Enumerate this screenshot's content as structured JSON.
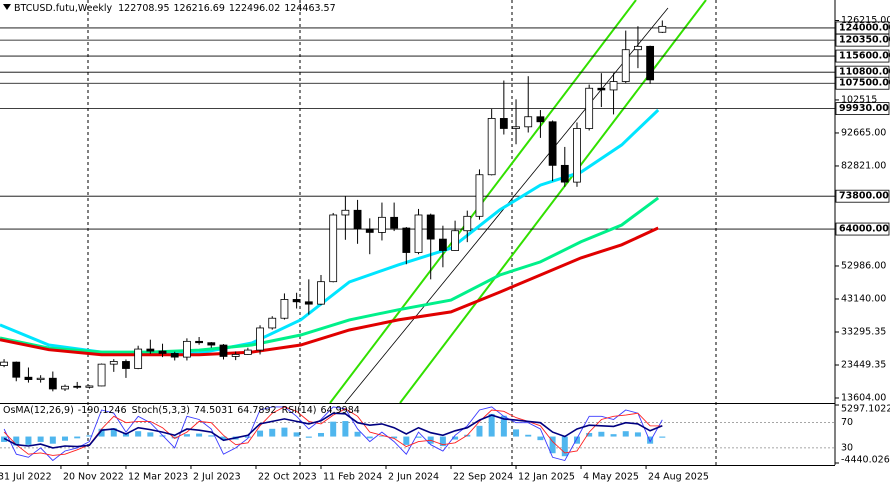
{
  "chart_data": [
    {
      "type": "candlestick",
      "title": "BTCUSD.futu,Weekly",
      "xlim": [
        1,
        206.5
      ],
      "ylim": [
        12112,
        132327
      ],
      "x": [
        2,
        5,
        8,
        11,
        14,
        17,
        20,
        23,
        26,
        29,
        32,
        35,
        38,
        41,
        44,
        47,
        50,
        53,
        56,
        59,
        62,
        65,
        68,
        71,
        74,
        77,
        80,
        83,
        86,
        89,
        92,
        95,
        98,
        101,
        104,
        107,
        110,
        113,
        116,
        119,
        122,
        125,
        128,
        131,
        134,
        137,
        140,
        143,
        146,
        149,
        152,
        155,
        158,
        161,
        164
      ],
      "open": [
        23300,
        24300,
        19800,
        19100,
        19500,
        16300,
        17100,
        16800,
        17200,
        23700,
        24500,
        22400,
        28200,
        27600,
        26900,
        25800,
        30500,
        30100,
        29400,
        26000,
        26600,
        27900,
        34500,
        37400,
        43000,
        42300,
        41600,
        48300,
        68200,
        69600,
        64000,
        63000,
        67500,
        64300,
        57000,
        68200,
        61000,
        57600,
        63500,
        67800,
        80200,
        97000,
        94000,
        94500,
        97500,
        96000,
        83000,
        78000,
        94000,
        106000,
        105500,
        108000,
        117500,
        118500,
        122708.95
      ],
      "high": [
        25200,
        24500,
        22700,
        20400,
        21500,
        17600,
        18400,
        17400,
        23900,
        25200,
        25100,
        29200,
        31000,
        29800,
        27400,
        31400,
        31800,
        30300,
        29700,
        27500,
        28600,
        35300,
        38000,
        44800,
        45000,
        49000,
        50300,
        68800,
        73800,
        72700,
        67200,
        71900,
        71900,
        64600,
        70000,
        68600,
        65000,
        66500,
        69500,
        81800,
        99800,
        108300,
        102700,
        109600,
        99500,
        96400,
        88500,
        95800,
        107100,
        110500,
        110500,
        123200,
        124500,
        118700,
        126216.69
      ],
      "low": [
        22800,
        18600,
        18200,
        18200,
        15600,
        15700,
        16300,
        16400,
        17100,
        21400,
        19600,
        22200,
        26800,
        25800,
        24800,
        24800,
        29500,
        28600,
        25100,
        24900,
        26500,
        26600,
        34000,
        37000,
        40300,
        38500,
        41300,
        48100,
        60800,
        59600,
        56500,
        60600,
        63400,
        53500,
        56500,
        49000,
        52600,
        57500,
        60100,
        66800,
        80000,
        92200,
        89300,
        92800,
        91200,
        78300,
        76600,
        76600,
        93400,
        100400,
        98200,
        107500,
        112000,
        107300,
        122496.02
      ],
      "close": [
        24300,
        19800,
        19100,
        19500,
        16300,
        17100,
        16800,
        17200,
        23700,
        24500,
        22400,
        28200,
        27600,
        26900,
        25800,
        30500,
        30100,
        29400,
        26000,
        26600,
        27900,
        34500,
        37400,
        43000,
        42300,
        41600,
        48300,
        68200,
        69600,
        64000,
        63000,
        67500,
        64300,
        57000,
        68200,
        61000,
        57600,
        63500,
        67800,
        80200,
        97000,
        94000,
        94500,
        97500,
        96000,
        83000,
        78000,
        94000,
        106000,
        105500,
        108000,
        117500,
        118500,
        108500,
        124463.57
      ],
      "up_color": "#ffffff",
      "down_color": "#000000",
      "wick_color": "#000000",
      "overlays": [
        {
          "color": "#00e5ff",
          "x": [
            1,
            13,
            26,
            38,
            50,
            63,
            75,
            87,
            99,
            112,
            124,
            134,
            144,
            154,
            163
          ],
          "values": [
            35400,
            29400,
            27300,
            27000,
            27000,
            30000,
            36900,
            48200,
            53300,
            58300,
            69700,
            77100,
            81000,
            89100,
            99500
          ]
        },
        {
          "color": "#00f08a",
          "x": [
            1,
            13,
            26,
            38,
            50,
            63,
            75,
            87,
            99,
            112,
            124,
            134,
            144,
            154,
            163
          ],
          "values": [
            31500,
            28500,
            27300,
            27300,
            27900,
            29400,
            32400,
            36900,
            39900,
            42800,
            50300,
            54200,
            60200,
            65200,
            73300
          ]
        },
        {
          "color": "#e00000",
          "x": [
            1,
            13,
            26,
            38,
            50,
            63,
            75,
            87,
            99,
            112,
            124,
            134,
            144,
            154,
            163
          ],
          "values": [
            31000,
            28000,
            26500,
            26500,
            26500,
            27300,
            29400,
            33900,
            36900,
            39300,
            45200,
            50300,
            55400,
            59300,
            64300
          ]
        }
      ],
      "levels": [
        {
          "value": 124000,
          "label": "124000.00"
        },
        {
          "value": 120350,
          "label": "120350.00"
        },
        {
          "value": 115600,
          "label": "115600.00"
        },
        {
          "value": 110800,
          "label": "110800.00"
        },
        {
          "value": 107500,
          "label": "107500.00"
        },
        {
          "value": 99930,
          "label": "99930.00"
        },
        {
          "value": 73800,
          "label": "73800.00"
        },
        {
          "value": 64000,
          "label": "64000.00"
        }
      ],
      "yticks": [
        {
          "value": 13604,
          "label": "13604.00"
        },
        {
          "value": 23449.35,
          "label": "23449.35"
        },
        {
          "value": 33295.35,
          "label": "33295.35"
        },
        {
          "value": 43140,
          "label": "43140.00"
        },
        {
          "value": 52986,
          "label": "52986.00"
        },
        {
          "value": 82821,
          "label": "82821.00"
        },
        {
          "value": 92665,
          "label": "92665.00"
        },
        102515,
        {
          "value": 126215,
          "label": "126215.00"
        }
      ],
      "xticks": [
        {
          "value": 0,
          "label": "31 Jul 2022"
        },
        {
          "value": 16,
          "label": "20 Nov 2022"
        },
        {
          "value": 32,
          "label": "12 Mar 2023"
        },
        {
          "value": 48,
          "label": "2 Jul 2023"
        },
        {
          "value": 64,
          "label": "22 Oct 2023"
        },
        {
          "value": 80,
          "label": "11 Feb 2024"
        },
        {
          "value": 96,
          "label": "2 Jun 2024"
        },
        {
          "value": 112,
          "label": "22 Sep 2024"
        },
        {
          "value": 128,
          "label": "12 Jan 2025"
        },
        {
          "value": 144,
          "label": "4 May 2025"
        },
        {
          "value": 160,
          "label": "24 Aug 2025"
        }
      ]
    },
    {
      "type": "indicator",
      "xlim": [
        1,
        206.5
      ],
      "ylim": [
        -4440.0263,
        5297.1022
      ],
      "yticks": [
        -4440.0263,
        5297.1022
      ],
      "y2lim": [
        6,
        98
      ],
      "y2ticks": [
        30,
        70
      ],
      "x": [
        2,
        5,
        8,
        11,
        14,
        17,
        20,
        23,
        26,
        29,
        32,
        35,
        38,
        41,
        44,
        47,
        50,
        53,
        56,
        59,
        62,
        65,
        68,
        71,
        74,
        77,
        80,
        83,
        86,
        89,
        92,
        95,
        98,
        101,
        104,
        107,
        110,
        113,
        116,
        119,
        122,
        125,
        128,
        131,
        134,
        137,
        140,
        143,
        146,
        149,
        152,
        155,
        158,
        161,
        164
      ],
      "series": [
        {
          "name": "OsMA(12,26,9)",
          "color": "#4fb6ee",
          "kind": "bar",
          "values": [
            -900,
            -1500,
            -1400,
            -900,
            -1200,
            -700,
            -300,
            200,
            1300,
            1400,
            600,
            900,
            700,
            200,
            -300,
            400,
            500,
            200,
            -600,
            -500,
            -200,
            1000,
            1300,
            1500,
            700,
            -200,
            600,
            2500,
            2600,
            800,
            -300,
            100,
            -300,
            -1400,
            -200,
            -1200,
            -1600,
            -500,
            300,
            1800,
            3800,
            3500,
            1200,
            300,
            -600,
            -2800,
            -3300,
            -1200,
            600,
            800,
            400,
            900,
            700,
            -1200,
            -190.1246
          ]
        },
        {
          "name": "Stoch(5,3,3)",
          "color": "#3a3aff",
          "axis": "y2",
          "kind": "line",
          "values": [
            60,
            20,
            15,
            30,
            10,
            25,
            30,
            40,
            90,
            85,
            55,
            80,
            70,
            50,
            30,
            80,
            75,
            60,
            20,
            30,
            45,
            90,
            95,
            95,
            80,
            60,
            75,
            95,
            92,
            60,
            40,
            55,
            40,
            20,
            55,
            35,
            25,
            50,
            65,
            90,
            95,
            80,
            70,
            70,
            60,
            15,
            10,
            45,
            80,
            80,
            75,
            90,
            85,
            40,
            74.5031
          ]
        },
        {
          "color": "#ff2020",
          "axis": "y2",
          "kind": "line",
          "values": [
            55,
            35,
            20,
            22,
            18,
            20,
            27,
            35,
            60,
            80,
            70,
            72,
            72,
            62,
            45,
            55,
            72,
            70,
            50,
            35,
            38,
            65,
            85,
            95,
            88,
            72,
            68,
            82,
            92,
            80,
            55,
            50,
            45,
            32,
            40,
            42,
            35,
            38,
            50,
            72,
            90,
            88,
            78,
            72,
            65,
            40,
            22,
            25,
            55,
            75,
            80,
            82,
            85,
            65,
            64.7892
          ]
        },
        {
          "name": "RSI(14)",
          "color": "#000080",
          "axis": "y2",
          "kind": "line",
          "values": [
            45,
            35,
            33,
            36,
            30,
            33,
            32,
            34,
            58,
            60,
            52,
            62,
            59,
            55,
            50,
            60,
            58,
            55,
            42,
            46,
            50,
            68,
            72,
            76,
            72,
            68,
            73,
            85,
            84,
            70,
            66,
            68,
            62,
            52,
            62,
            54,
            50,
            57,
            62,
            74,
            82,
            76,
            74,
            72,
            70,
            55,
            48,
            60,
            66,
            65,
            64,
            70,
            68,
            57,
            64.9984
          ]
        }
      ]
    }
  ]
}
